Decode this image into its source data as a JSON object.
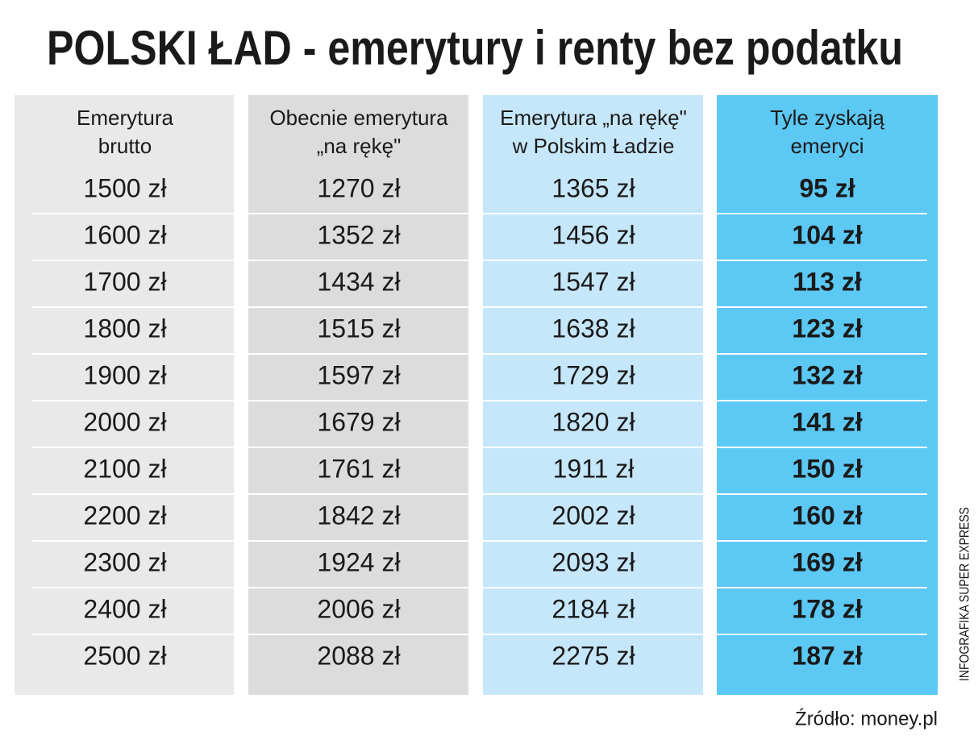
{
  "header": {
    "title": "POLSKI ŁAD - emerytury i renty bez podatku"
  },
  "table": {
    "columns": [
      [
        "Emerytura",
        "brutto"
      ],
      [
        "Obecnie emerytura",
        "„na rękę\""
      ],
      [
        "Emerytura „na rękę\"",
        "w Polskim Ładzie"
      ],
      [
        "Tyle zyskają",
        "emeryci"
      ]
    ],
    "rows": [
      [
        "1500 zł",
        "1270 zł",
        "1365 zł",
        "95 zł"
      ],
      [
        "1600 zł",
        "1352 zł",
        "1456 zł",
        "104 zł"
      ],
      [
        "1700 zł",
        "1434 zł",
        "1547 zł",
        "113 zł"
      ],
      [
        "1800 zł",
        "1515 zł",
        "1638 zł",
        "123 zł"
      ],
      [
        "1900 zł",
        "1597 zł",
        "1729 zł",
        "132 zł"
      ],
      [
        "2000 zł",
        "1679 zł",
        "1820 zł",
        "141 zł"
      ],
      [
        "2100 zł",
        "1761 zł",
        "1911 zł",
        "150 zł"
      ],
      [
        "2200 zł",
        "1842 zł",
        "2002 zł",
        "160 zł"
      ],
      [
        "2300 zł",
        "1924 zł",
        "2093 zł",
        "169 zł"
      ],
      [
        "2400 zł",
        "2006 zł",
        "2184 zł",
        "178 zł"
      ],
      [
        "2500 zł",
        "2088 zł",
        "2275 zł",
        "187 zł"
      ]
    ]
  },
  "footer": {
    "source": "Źródło: money.pl",
    "credit": "INFOGRAFIKA SUPER EXPRESS"
  }
}
